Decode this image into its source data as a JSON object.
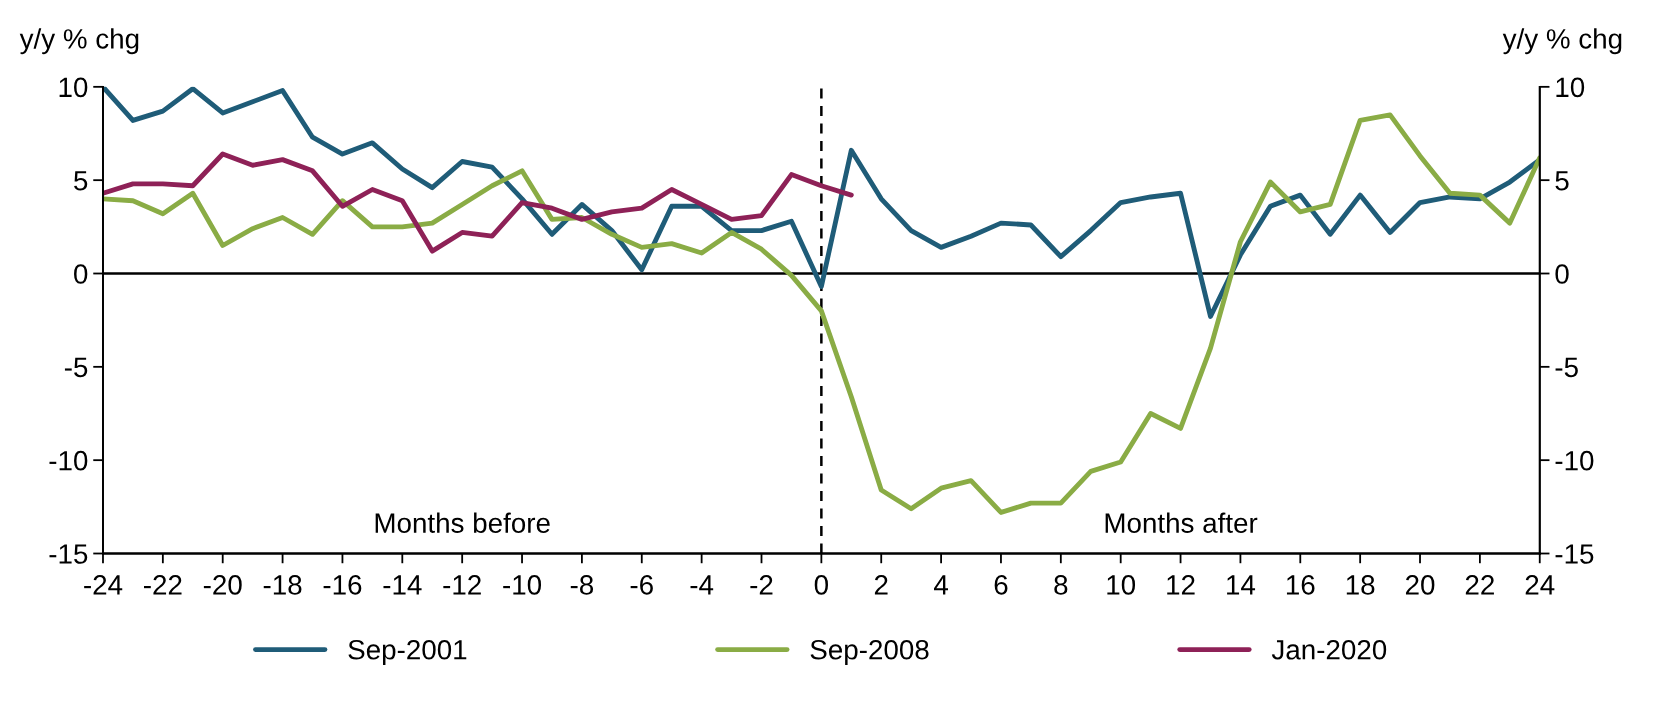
{
  "chart_data": {
    "type": "line",
    "ylabel": "y/y % chg",
    "y2label": "y/y % chg",
    "x": [
      -24,
      -23,
      -22,
      -21,
      -20,
      -19,
      -18,
      -17,
      -16,
      -15,
      -14,
      -13,
      -12,
      -11,
      -10,
      -9,
      -8,
      -7,
      -6,
      -5,
      -4,
      -3,
      -2,
      -1,
      0,
      1,
      2,
      3,
      4,
      5,
      6,
      7,
      8,
      9,
      10,
      11,
      12,
      13,
      14,
      15,
      16,
      17,
      18,
      19,
      20,
      21,
      22,
      23,
      24
    ],
    "series": [
      {
        "name": "Sep-2001",
        "color": "#1f5c78",
        "values": [
          10,
          8.2,
          8.7,
          9.9,
          8.6,
          9.2,
          9.8,
          7.3,
          6.4,
          7.0,
          5.6,
          4.6,
          6.0,
          5.7,
          4.0,
          2.1,
          3.7,
          2.3,
          0.2,
          3.6,
          3.6,
          2.3,
          2.3,
          2.8,
          -0.7,
          6.6,
          4.0,
          2.3,
          1.4,
          2.0,
          2.7,
          2.6,
          0.9,
          2.3,
          3.8,
          4.1,
          4.3,
          -2.3,
          1.0,
          3.6,
          4.2,
          2.1,
          4.2,
          2.2,
          3.8,
          4.1,
          4.0,
          4.9,
          6.1
        ]
      },
      {
        "name": "Sep-2008",
        "color": "#8aac45",
        "values": [
          4.0,
          3.9,
          3.2,
          4.3,
          1.5,
          2.4,
          3.0,
          2.1,
          3.9,
          2.5,
          2.5,
          2.7,
          3.7,
          4.7,
          5.5,
          2.9,
          3.0,
          2.1,
          1.4,
          1.6,
          1.1,
          2.2,
          1.3,
          -0.1,
          -2.0,
          -6.6,
          -11.6,
          -12.6,
          -11.5,
          -11.1,
          -12.8,
          -12.3,
          -12.3,
          -10.6,
          -10.1,
          -7.5,
          -8.3,
          -4.0,
          1.7,
          4.9,
          3.3,
          3.7,
          8.2,
          8.5,
          6.3,
          4.3,
          4.2,
          2.7,
          6.2
        ]
      },
      {
        "name": "Jan-2020",
        "color": "#8e2157",
        "x": [
          -24,
          -23,
          -22,
          -21,
          -20,
          -19,
          -18,
          -17,
          -16,
          -15,
          -14,
          -13,
          -12,
          -11,
          -10,
          -9,
          -8,
          -7,
          -6,
          -5,
          -4,
          -3,
          -2,
          -1,
          0,
          1
        ],
        "values": [
          4.3,
          4.8,
          4.8,
          4.7,
          6.4,
          5.8,
          6.1,
          5.5,
          3.6,
          4.5,
          3.9,
          1.2,
          2.2,
          2.0,
          3.8,
          3.5,
          2.9,
          3.3,
          3.5,
          4.5,
          3.7,
          2.9,
          3.1,
          5.3,
          4.7,
          4.2
        ]
      }
    ],
    "xlim": [
      -24,
      24
    ],
    "xticks": [
      -24,
      -22,
      -20,
      -18,
      -16,
      -14,
      -12,
      -10,
      -8,
      -6,
      -4,
      -2,
      0,
      2,
      4,
      6,
      8,
      10,
      12,
      14,
      16,
      18,
      20,
      22,
      24
    ],
    "ylim": [
      -15,
      10
    ],
    "yticks": [
      -15,
      -10,
      -5,
      0,
      5,
      10
    ],
    "y2lim": [
      -15,
      10
    ],
    "y2ticks": [
      -15,
      -10,
      -5,
      0,
      5,
      10
    ],
    "ref_lines": [
      {
        "axis": "y",
        "value": 0,
        "color": "#000000",
        "line_style": "solid"
      },
      {
        "axis": "x",
        "value": 0,
        "color": "#000000",
        "line_style": "dashed"
      }
    ],
    "annotations": [
      "Months before",
      "Months after"
    ],
    "legend": "bottom",
    "grid": false
  }
}
